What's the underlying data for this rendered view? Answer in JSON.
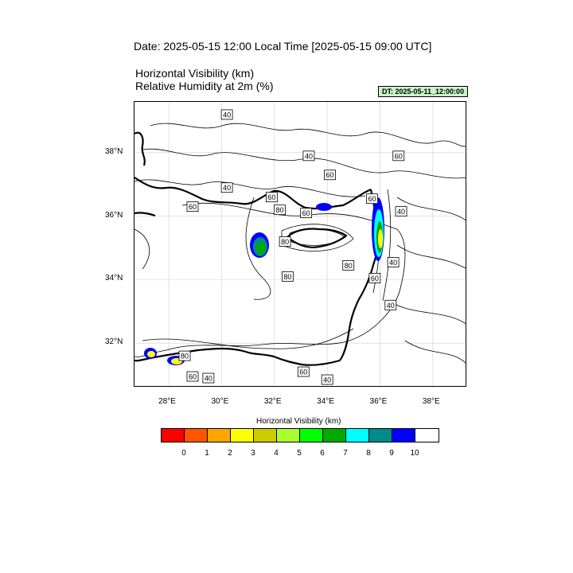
{
  "title": {
    "date_line": "Date: 2025-05-15  12:00 Local Time [2025-05-15  09:00 UTC]",
    "variable_1": "Horizontal Visibility   (km)",
    "variable_2": "Relative Humidity at 2m   (%)",
    "dt_badge": "DT: 2025-05-11_12:00:00"
  },
  "map": {
    "lon_range": [
      26.7,
      39.3
    ],
    "lat_range": [
      30.6,
      39.6
    ],
    "lon_ticks": [
      {
        "value": 28,
        "label": "28°E"
      },
      {
        "value": 30,
        "label": "30°E"
      },
      {
        "value": 32,
        "label": "32°E"
      },
      {
        "value": 34,
        "label": "34°E"
      },
      {
        "value": 36,
        "label": "36°E"
      },
      {
        "value": 38,
        "label": "38°E"
      }
    ],
    "lat_ticks": [
      {
        "value": 38,
        "label": "38°N"
      },
      {
        "value": 36,
        "label": "36°N"
      },
      {
        "value": 34,
        "label": "34°N"
      },
      {
        "value": 32,
        "label": "32°N"
      }
    ],
    "gridlines": true,
    "contour_labels": [
      {
        "text": "40",
        "lon": 30.2,
        "lat": 39.2
      },
      {
        "text": "40",
        "lon": 33.3,
        "lat": 37.9
      },
      {
        "text": "60",
        "lon": 34.1,
        "lat": 37.3
      },
      {
        "text": "60",
        "lon": 36.7,
        "lat": 37.9
      },
      {
        "text": "40",
        "lon": 30.2,
        "lat": 36.9
      },
      {
        "text": "60",
        "lon": 31.9,
        "lat": 36.6
      },
      {
        "text": "60",
        "lon": 28.9,
        "lat": 36.3
      },
      {
        "text": "80",
        "lon": 32.2,
        "lat": 36.2
      },
      {
        "text": "60",
        "lon": 33.2,
        "lat": 36.1
      },
      {
        "text": "60",
        "lon": 35.7,
        "lat": 36.55
      },
      {
        "text": "40",
        "lon": 36.8,
        "lat": 36.15
      },
      {
        "text": "80",
        "lon": 32.4,
        "lat": 35.2
      },
      {
        "text": "80",
        "lon": 34.8,
        "lat": 34.45
      },
      {
        "text": "40",
        "lon": 36.5,
        "lat": 34.55
      },
      {
        "text": "80",
        "lon": 32.5,
        "lat": 34.1
      },
      {
        "text": "60",
        "lon": 35.8,
        "lat": 34.05
      },
      {
        "text": "40",
        "lon": 36.4,
        "lat": 33.2
      },
      {
        "text": "80",
        "lon": 28.6,
        "lat": 31.6
      },
      {
        "text": "60",
        "lon": 28.9,
        "lat": 30.95
      },
      {
        "text": "40",
        "lon": 29.5,
        "lat": 30.9
      },
      {
        "text": "60",
        "lon": 33.1,
        "lat": 31.1
      },
      {
        "text": "40",
        "lon": 34.0,
        "lat": 30.85
      }
    ]
  },
  "legend": {
    "title": "Horizontal Visibility  (km)",
    "colors": [
      "#ff0000",
      "#ff5500",
      "#ffa500",
      "#ffff00",
      "#cccc00",
      "#aaff33",
      "#00ff00",
      "#00aa00",
      "#00ffff",
      "#008b8b",
      "#0000ff",
      "#ffffff"
    ],
    "labels": [
      "0",
      "1",
      "2",
      "3",
      "4",
      "5",
      "6",
      "7",
      "8",
      "9",
      "10"
    ]
  }
}
